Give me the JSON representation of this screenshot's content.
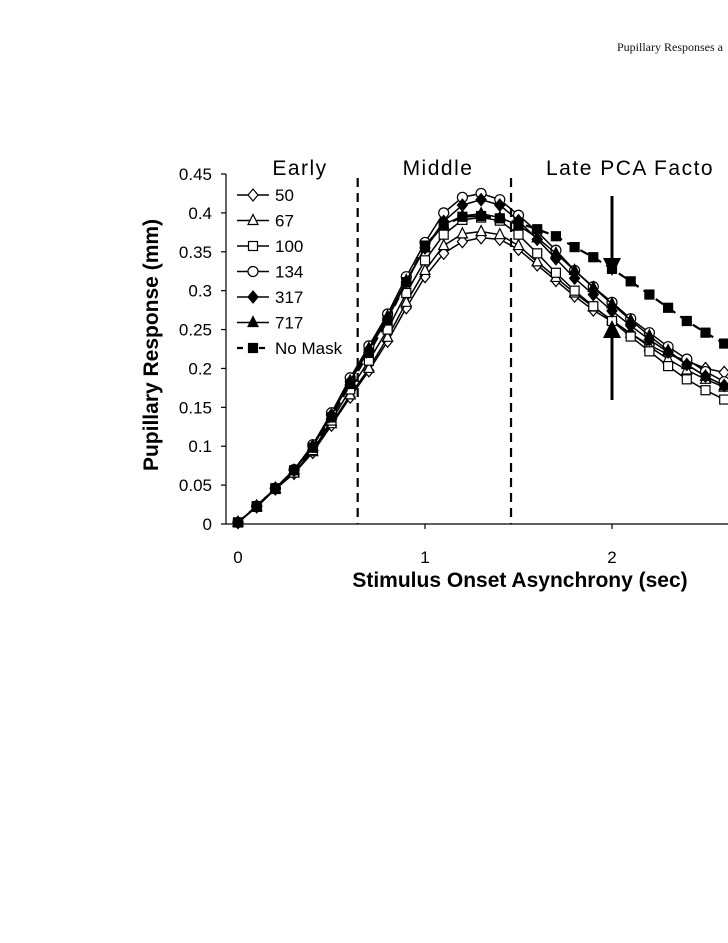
{
  "page": {
    "header": "Pupillary Responses a"
  },
  "chart_data": {
    "type": "line",
    "title": "",
    "xlabel": "Stimulus Onset Asynchrony (sec)",
    "ylabel": "Pupillary Response (mm)",
    "xlim": [
      -0.07,
      2.6
    ],
    "ylim": [
      0,
      0.45
    ],
    "yticks": [
      "0",
      "0.05",
      "0.1",
      "0.15",
      "0.2",
      "0.25",
      "0.3",
      "0.35",
      "0.4",
      "0.45"
    ],
    "xticks": [
      "0",
      "1",
      "2"
    ],
    "xtick_values": [
      0,
      1,
      2
    ],
    "legend_position": "top-left",
    "grid": false,
    "regions": [
      {
        "label": "Early",
        "x_center": 0.3
      },
      {
        "label": "Middle",
        "x_center": 1.05
      },
      {
        "label": "Late PCA Facto",
        "x_center": 2.3
      }
    ],
    "dividers": [
      0.64,
      1.46
    ],
    "annotation_arrow_x": 2.0,
    "x": [
      0,
      0.1,
      0.2,
      0.3,
      0.4,
      0.5,
      0.6,
      0.7,
      0.8,
      0.9,
      1.0,
      1.1,
      1.2,
      1.3,
      1.4,
      1.5,
      1.6,
      1.7,
      1.8,
      1.9,
      2.0,
      2.1,
      2.2,
      2.3,
      2.4,
      2.5,
      2.6
    ],
    "series": [
      {
        "name": "50",
        "marker": "diamond-open",
        "dash": false,
        "values": [
          0.002,
          0.022,
          0.045,
          0.065,
          0.092,
          0.127,
          0.163,
          0.197,
          0.235,
          0.278,
          0.318,
          0.348,
          0.363,
          0.368,
          0.366,
          0.353,
          0.333,
          0.313,
          0.293,
          0.275,
          0.26,
          0.245,
          0.23,
          0.218,
          0.21,
          0.2,
          0.195
        ]
      },
      {
        "name": "67",
        "marker": "triangle-open",
        "dash": false,
        "values": [
          0.002,
          0.022,
          0.045,
          0.066,
          0.093,
          0.129,
          0.166,
          0.2,
          0.24,
          0.285,
          0.326,
          0.358,
          0.373,
          0.376,
          0.372,
          0.358,
          0.337,
          0.317,
          0.297,
          0.279,
          0.262,
          0.245,
          0.228,
          0.212,
          0.198,
          0.186,
          0.176
        ]
      },
      {
        "name": "100",
        "marker": "square-open",
        "dash": false,
        "values": [
          0.002,
          0.022,
          0.045,
          0.066,
          0.095,
          0.133,
          0.173,
          0.21,
          0.25,
          0.297,
          0.339,
          0.372,
          0.391,
          0.394,
          0.39,
          0.372,
          0.348,
          0.323,
          0.3,
          0.28,
          0.261,
          0.241,
          0.222,
          0.203,
          0.186,
          0.172,
          0.16
        ]
      },
      {
        "name": "134",
        "marker": "circle-open",
        "dash": false,
        "values": [
          0.002,
          0.023,
          0.046,
          0.07,
          0.102,
          0.143,
          0.188,
          0.229,
          0.27,
          0.318,
          0.362,
          0.4,
          0.42,
          0.425,
          0.417,
          0.397,
          0.376,
          0.352,
          0.326,
          0.305,
          0.285,
          0.264,
          0.246,
          0.228,
          0.212,
          0.196,
          0.183
        ]
      },
      {
        "name": "317",
        "marker": "diamond-filled",
        "dash": false,
        "values": [
          0.002,
          0.023,
          0.046,
          0.069,
          0.1,
          0.14,
          0.183,
          0.224,
          0.264,
          0.311,
          0.355,
          0.389,
          0.41,
          0.417,
          0.41,
          0.39,
          0.366,
          0.341,
          0.316,
          0.295,
          0.274,
          0.255,
          0.237,
          0.221,
          0.205,
          0.19,
          0.178
        ]
      },
      {
        "name": "717",
        "marker": "triangle-filled",
        "dash": false,
        "values": [
          0.002,
          0.023,
          0.046,
          0.069,
          0.1,
          0.14,
          0.184,
          0.226,
          0.267,
          0.313,
          0.355,
          0.385,
          0.396,
          0.399,
          0.394,
          0.384,
          0.368,
          0.348,
          0.326,
          0.304,
          0.283,
          0.262,
          0.242,
          0.223,
          0.205,
          0.19,
          0.178
        ]
      },
      {
        "name": "No Mask",
        "marker": "square-filled",
        "dash": true,
        "values": [
          0.002,
          0.023,
          0.046,
          0.069,
          0.098,
          0.137,
          0.18,
          0.22,
          0.262,
          0.311,
          0.358,
          0.384,
          0.395,
          0.396,
          0.393,
          0.387,
          0.379,
          0.37,
          0.356,
          0.343,
          0.328,
          0.312,
          0.295,
          0.278,
          0.261,
          0.246,
          0.232
        ]
      }
    ]
  }
}
